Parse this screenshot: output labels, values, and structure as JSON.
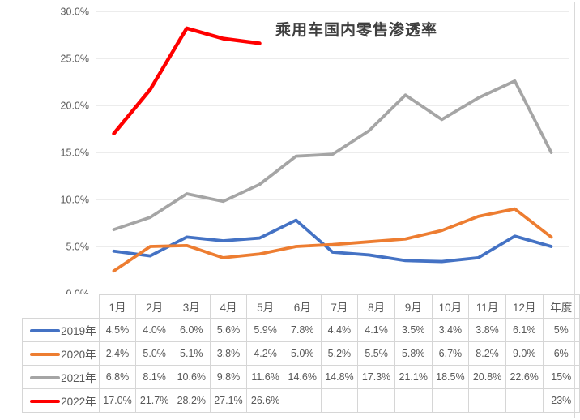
{
  "chart_data": {
    "type": "line",
    "title": "乘用车国内零售渗透率",
    "xlabel": "",
    "ylabel": "",
    "categories": [
      "1月",
      "2月",
      "3月",
      "4月",
      "5月",
      "6月",
      "7月",
      "8月",
      "9月",
      "10月",
      "11月",
      "12月",
      "年度"
    ],
    "y_ticks": [
      {
        "label": "30.0%",
        "value": 30
      },
      {
        "label": "25.0%",
        "value": 25
      },
      {
        "label": "20.0%",
        "value": 20
      },
      {
        "label": "15.0%",
        "value": 15
      },
      {
        "label": "10.0%",
        "value": 10
      },
      {
        "label": "5.0%",
        "value": 5
      },
      {
        "label": "0.0%",
        "value": 0
      }
    ],
    "ylim": [
      0,
      30
    ],
    "grid": true,
    "legend_position": "table-left",
    "series": [
      {
        "name": "2019年",
        "color": "#4472C4",
        "values": [
          4.5,
          4.0,
          6.0,
          5.6,
          5.9,
          7.8,
          4.4,
          4.1,
          3.5,
          3.4,
          3.8,
          6.1,
          5
        ]
      },
      {
        "name": "2020年",
        "color": "#ED7D31",
        "values": [
          2.4,
          5.0,
          5.1,
          3.8,
          4.2,
          5.0,
          5.2,
          5.5,
          5.8,
          6.7,
          8.2,
          9.0,
          6
        ]
      },
      {
        "name": "2021年",
        "color": "#A5A5A5",
        "values": [
          6.8,
          8.1,
          10.6,
          9.8,
          11.6,
          14.6,
          14.8,
          17.3,
          21.1,
          18.5,
          20.8,
          22.6,
          15
        ]
      },
      {
        "name": "2022年",
        "color": "#FF0000",
        "values": [
          17.0,
          21.7,
          28.2,
          27.1,
          26.6,
          null,
          null,
          null,
          null,
          null,
          null,
          null,
          null
        ]
      }
    ]
  },
  "table": {
    "header": [
      "1月",
      "2月",
      "3月",
      "4月",
      "5月",
      "6月",
      "7月",
      "8月",
      "9月",
      "10月",
      "11月",
      "12月",
      "年度"
    ],
    "rows": [
      {
        "label": "2019年",
        "color": "#4472C4",
        "cells": [
          "4.5%",
          "4.0%",
          "6.0%",
          "5.6%",
          "5.9%",
          "7.8%",
          "4.4%",
          "4.1%",
          "3.5%",
          "3.4%",
          "3.8%",
          "6.1%",
          "5%"
        ]
      },
      {
        "label": "2020年",
        "color": "#ED7D31",
        "cells": [
          "2.4%",
          "5.0%",
          "5.1%",
          "3.8%",
          "4.2%",
          "5.0%",
          "5.2%",
          "5.5%",
          "5.8%",
          "6.7%",
          "8.2%",
          "9.0%",
          "6%"
        ]
      },
      {
        "label": "2021年",
        "color": "#A5A5A5",
        "cells": [
          "6.8%",
          "8.1%",
          "10.6%",
          "9.8%",
          "11.6%",
          "14.6%",
          "14.8%",
          "17.3%",
          "21.1%",
          "18.5%",
          "20.8%",
          "22.6%",
          "15%"
        ]
      },
      {
        "label": "2022年",
        "color": "#FF0000",
        "cells": [
          "17.0%",
          "21.7%",
          "28.2%",
          "27.1%",
          "26.6%",
          "",
          "",
          "",
          "",
          "",
          "",
          "",
          "23%"
        ]
      }
    ]
  },
  "colors": {
    "gridline": "#d9d9d9",
    "axis_label": "#595959",
    "table_border": "#d6d6d6",
    "table_text": "#595959",
    "title_text": "#3f3f3f"
  }
}
